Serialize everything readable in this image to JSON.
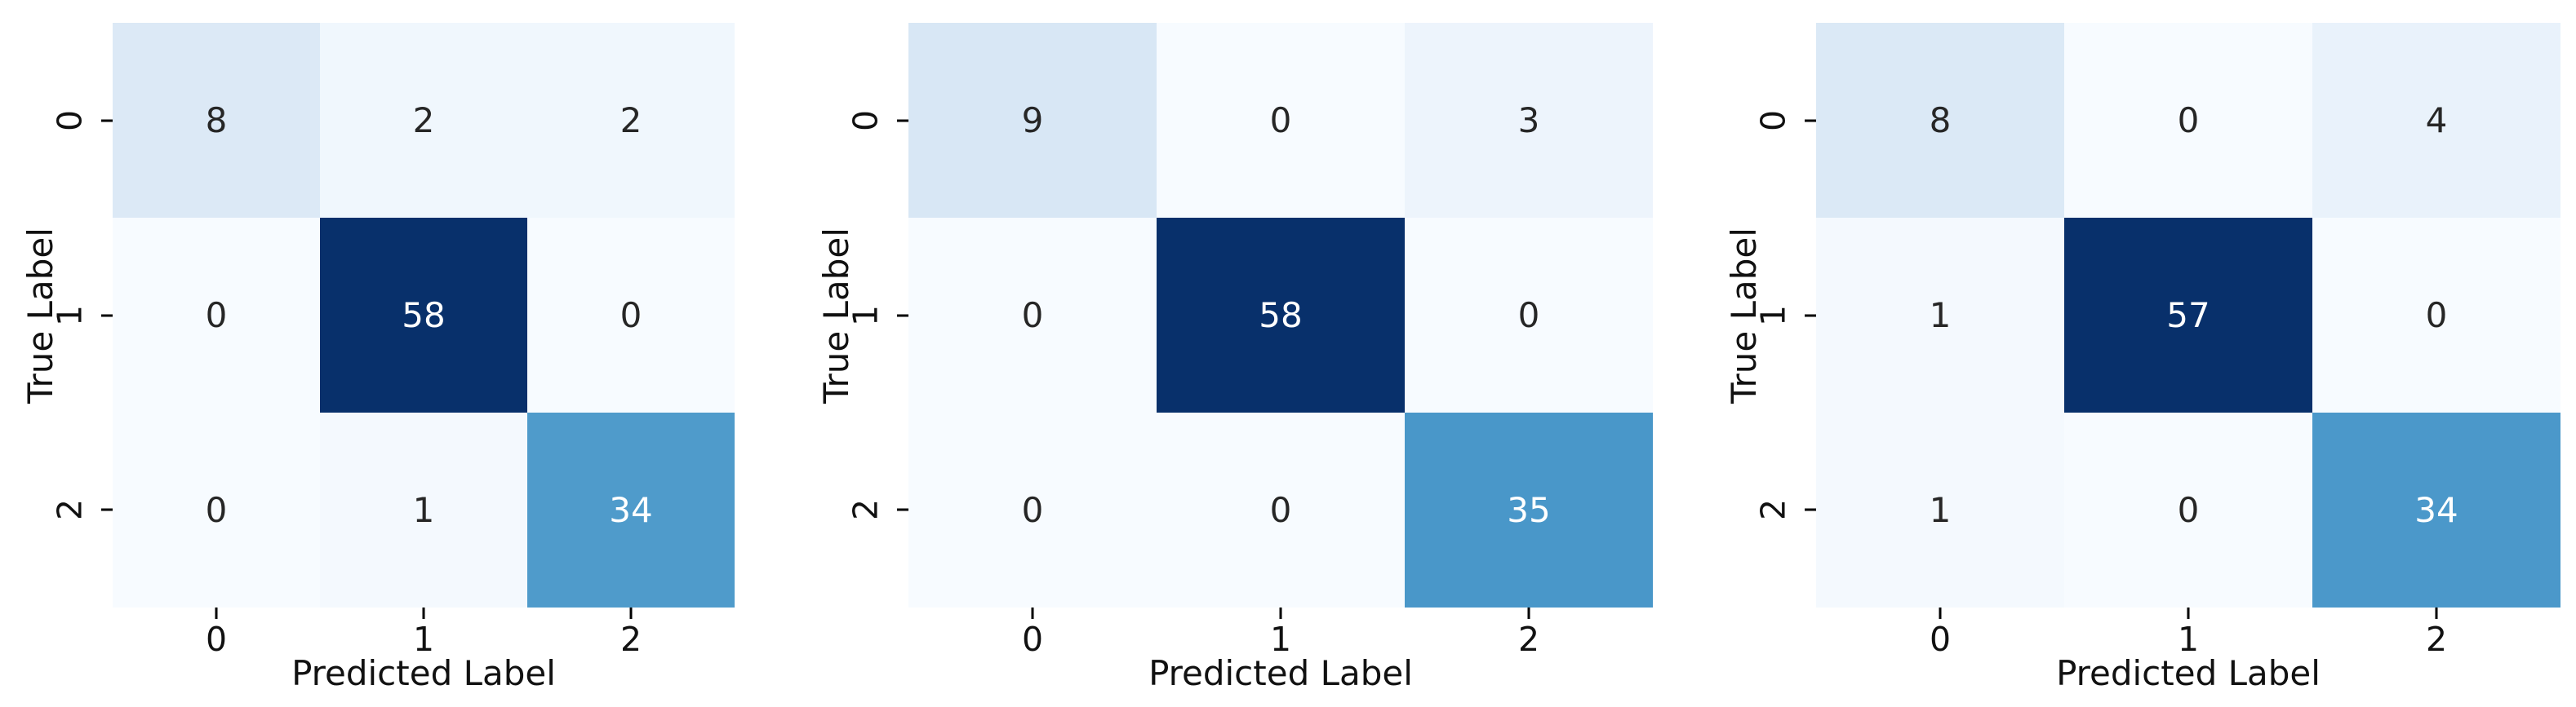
{
  "figure": {
    "background_color": "#ffffff",
    "colors": {
      "axis_text": "#111111",
      "tick_mark": "#000000",
      "annotation_dark": "#262626",
      "annotation_light": "#ffffff",
      "colormap_min": "#f7fbff",
      "colormap_max": "#08306b"
    }
  },
  "chart_data": [
    {
      "type": "heatmap",
      "title": "",
      "xlabel": "Predicted Label",
      "ylabel": "True Label",
      "x_ticks": [
        "0",
        "1",
        "2"
      ],
      "y_ticks": [
        "0",
        "1",
        "2"
      ],
      "matrix": [
        [
          8,
          2,
          2
        ],
        [
          0,
          58,
          0
        ],
        [
          0,
          1,
          34
        ]
      ],
      "vmin": 0,
      "vmax": 58,
      "colormap": "Blues",
      "grid": false,
      "y_tick_rotation_deg": 90,
      "cell_colors": [
        [
          "#dce9f6",
          "#f0f7fd",
          "#f0f7fd"
        ],
        [
          "#f7fbff",
          "#08306b",
          "#f7fbff"
        ],
        [
          "#f7fbff",
          "#f4f9fe",
          "#4f9bcb"
        ]
      ],
      "text_colors": [
        [
          "#262626",
          "#262626",
          "#262626"
        ],
        [
          "#262626",
          "#ffffff",
          "#262626"
        ],
        [
          "#262626",
          "#262626",
          "#ffffff"
        ]
      ]
    },
    {
      "type": "heatmap",
      "title": "",
      "xlabel": "Predicted Label",
      "ylabel": "True Label",
      "x_ticks": [
        "0",
        "1",
        "2"
      ],
      "y_ticks": [
        "0",
        "1",
        "2"
      ],
      "matrix": [
        [
          9,
          0,
          3
        ],
        [
          0,
          58,
          0
        ],
        [
          0,
          0,
          35
        ]
      ],
      "vmin": 0,
      "vmax": 58,
      "colormap": "Blues",
      "grid": false,
      "y_tick_rotation_deg": 90,
      "cell_colors": [
        [
          "#d8e7f5",
          "#f7fbff",
          "#edf4fc"
        ],
        [
          "#f7fbff",
          "#08306b",
          "#f7fbff"
        ],
        [
          "#f7fbff",
          "#f7fbff",
          "#4997c9"
        ]
      ],
      "text_colors": [
        [
          "#262626",
          "#262626",
          "#262626"
        ],
        [
          "#262626",
          "#ffffff",
          "#262626"
        ],
        [
          "#262626",
          "#262626",
          "#ffffff"
        ]
      ]
    },
    {
      "type": "heatmap",
      "title": "",
      "xlabel": "Predicted Label",
      "ylabel": "True Label",
      "x_ticks": [
        "0",
        "1",
        "2"
      ],
      "y_ticks": [
        "0",
        "1",
        "2"
      ],
      "matrix": [
        [
          8,
          0,
          4
        ],
        [
          1,
          57,
          0
        ],
        [
          1,
          0,
          34
        ]
      ],
      "vmin": 0,
      "vmax": 57,
      "colormap": "Blues",
      "grid": false,
      "y_tick_rotation_deg": 90,
      "cell_colors": [
        [
          "#dbe9f6",
          "#f7fbff",
          "#e9f2fb"
        ],
        [
          "#f4f9fe",
          "#08306b",
          "#f7fbff"
        ],
        [
          "#f4f9fe",
          "#f7fbff",
          "#4b98ca"
        ]
      ],
      "text_colors": [
        [
          "#262626",
          "#262626",
          "#262626"
        ],
        [
          "#262626",
          "#ffffff",
          "#262626"
        ],
        [
          "#262626",
          "#262626",
          "#ffffff"
        ]
      ]
    }
  ]
}
